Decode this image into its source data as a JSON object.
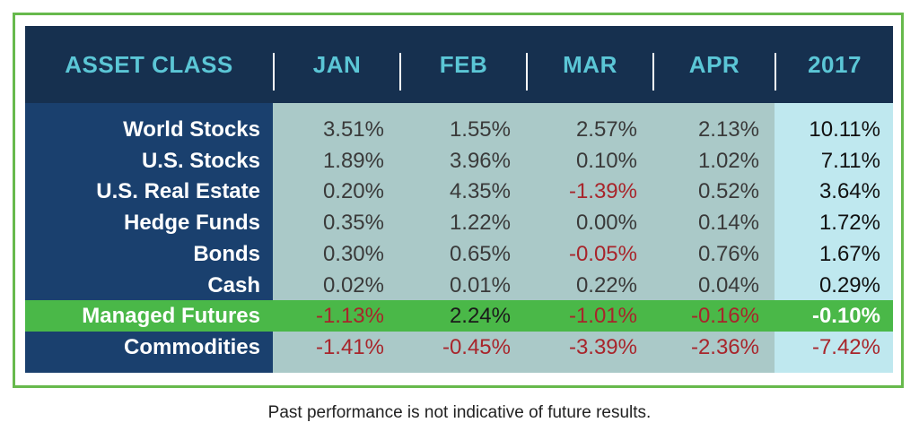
{
  "chart_data": {
    "type": "table",
    "columns": [
      "ASSET CLASS",
      "JAN",
      "FEB",
      "MAR",
      "APR",
      "2017"
    ],
    "rows": [
      {
        "asset": "World Stocks",
        "values": [
          "3.51%",
          "1.55%",
          "2.57%",
          "2.13%"
        ],
        "year": "10.11%",
        "highlight": false
      },
      {
        "asset": "U.S. Stocks",
        "values": [
          "1.89%",
          "3.96%",
          "0.10%",
          "1.02%"
        ],
        "year": "7.11%",
        "highlight": false
      },
      {
        "asset": "U.S. Real Estate",
        "values": [
          "0.20%",
          "4.35%",
          "-1.39%",
          "0.52%"
        ],
        "year": "3.64%",
        "highlight": false
      },
      {
        "asset": "Hedge Funds",
        "values": [
          "0.35%",
          "1.22%",
          "0.00%",
          "0.14%"
        ],
        "year": "1.72%",
        "highlight": false
      },
      {
        "asset": "Bonds",
        "values": [
          "0.30%",
          "0.65%",
          "-0.05%",
          "0.76%"
        ],
        "year": "1.67%",
        "highlight": false
      },
      {
        "asset": "Cash",
        "values": [
          "0.02%",
          "0.01%",
          "0.22%",
          "0.04%"
        ],
        "year": "0.29%",
        "highlight": false
      },
      {
        "asset": "Managed Futures",
        "values": [
          "-1.13%",
          "2.24%",
          "-1.01%",
          "-0.16%"
        ],
        "year": "-0.10%",
        "highlight": true
      },
      {
        "asset": "Commodities",
        "values": [
          "-1.41%",
          "-0.45%",
          "-3.39%",
          "-2.36%"
        ],
        "year": "-7.42%",
        "highlight": false
      }
    ],
    "colors": {
      "header_bg": "#16304f",
      "header_text": "#5bc6d6",
      "label_bg": "#1a406e",
      "month_bg": "#aac9c8",
      "year_bg": "#bfe8ef",
      "highlight": "#4ab848",
      "negative": "#a8252b",
      "frame": "#67b94c"
    }
  },
  "caption": "Past performance is not indicative of future results."
}
